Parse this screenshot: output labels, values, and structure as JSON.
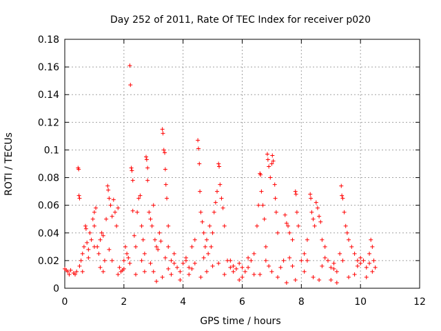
{
  "chart_data": {
    "type": "scatter",
    "title": "Day 252 of 2011, Rate Of TEC Index for receiver p020",
    "xlabel": "GPS time / hours",
    "ylabel": "ROTI / TECUs",
    "xlim": [
      0,
      12
    ],
    "ylim": [
      0,
      0.18
    ],
    "xticks": [
      "0",
      "2",
      "4",
      "6",
      "8",
      "10",
      "12"
    ],
    "yticks": [
      "0",
      "0.02",
      "0.04",
      "0.06",
      "0.08",
      "0.1",
      "0.12",
      "0.14",
      "0.16",
      "0.18"
    ],
    "grid": true,
    "marker": "plus",
    "color": "#ff0000",
    "series": [
      {
        "name": "ROTI",
        "points": [
          [
            0.0,
            0.014
          ],
          [
            0.05,
            0.013
          ],
          [
            0.1,
            0.012
          ],
          [
            0.2,
            0.013
          ],
          [
            0.3,
            0.011
          ],
          [
            0.35,
            0.01
          ],
          [
            0.4,
            0.012
          ],
          [
            0.45,
            0.087
          ],
          [
            0.47,
            0.086
          ],
          [
            0.48,
            0.067
          ],
          [
            0.5,
            0.065
          ],
          [
            0.5,
            0.016
          ],
          [
            0.55,
            0.02
          ],
          [
            0.6,
            0.025
          ],
          [
            0.65,
            0.03
          ],
          [
            0.7,
            0.045
          ],
          [
            0.72,
            0.043
          ],
          [
            0.75,
            0.033
          ],
          [
            0.8,
            0.028
          ],
          [
            0.85,
            0.04
          ],
          [
            0.9,
            0.035
          ],
          [
            0.95,
            0.05
          ],
          [
            1.0,
            0.055
          ],
          [
            1.0,
            0.045
          ],
          [
            1.05,
            0.058
          ],
          [
            1.1,
            0.03
          ],
          [
            1.15,
            0.025
          ],
          [
            1.2,
            0.035
          ],
          [
            1.25,
            0.04
          ],
          [
            1.3,
            0.038
          ],
          [
            1.35,
            0.02
          ],
          [
            1.4,
            0.05
          ],
          [
            1.45,
            0.074
          ],
          [
            1.47,
            0.071
          ],
          [
            1.5,
            0.065
          ],
          [
            1.5,
            0.028
          ],
          [
            1.55,
            0.06
          ],
          [
            1.6,
            0.052
          ],
          [
            1.65,
            0.064
          ],
          [
            1.7,
            0.055
          ],
          [
            1.75,
            0.045
          ],
          [
            1.8,
            0.058
          ],
          [
            1.85,
            0.015
          ],
          [
            1.9,
            0.012
          ],
          [
            1.95,
            0.013
          ],
          [
            2.0,
            0.02
          ],
          [
            2.05,
            0.03
          ],
          [
            2.1,
            0.025
          ],
          [
            2.15,
            0.022
          ],
          [
            2.2,
            0.161
          ],
          [
            2.22,
            0.147
          ],
          [
            2.25,
            0.087
          ],
          [
            2.27,
            0.085
          ],
          [
            2.3,
            0.078
          ],
          [
            2.3,
            0.056
          ],
          [
            2.35,
            0.038
          ],
          [
            2.4,
            0.03
          ],
          [
            2.45,
            0.055
          ],
          [
            2.5,
            0.065
          ],
          [
            2.55,
            0.067
          ],
          [
            2.6,
            0.045
          ],
          [
            2.65,
            0.035
          ],
          [
            2.7,
            0.025
          ],
          [
            2.75,
            0.095
          ],
          [
            2.77,
            0.093
          ],
          [
            2.8,
            0.087
          ],
          [
            2.8,
            0.078
          ],
          [
            2.85,
            0.055
          ],
          [
            2.9,
            0.05
          ],
          [
            2.95,
            0.045
          ],
          [
            3.0,
            0.06
          ],
          [
            3.05,
            0.035
          ],
          [
            3.1,
            0.03
          ],
          [
            3.15,
            0.028
          ],
          [
            3.2,
            0.04
          ],
          [
            3.25,
            0.034
          ],
          [
            3.3,
            0.115
          ],
          [
            3.32,
            0.112
          ],
          [
            3.35,
            0.1
          ],
          [
            3.38,
            0.098
          ],
          [
            3.4,
            0.086
          ],
          [
            3.42,
            0.075
          ],
          [
            3.45,
            0.065
          ],
          [
            3.5,
            0.045
          ],
          [
            3.5,
            0.03
          ],
          [
            3.6,
            0.02
          ],
          [
            3.7,
            0.025
          ],
          [
            3.8,
            0.015
          ],
          [
            3.9,
            0.012
          ],
          [
            4.0,
            0.018
          ],
          [
            4.1,
            0.02
          ],
          [
            4.2,
            0.015
          ],
          [
            4.3,
            0.03
          ],
          [
            4.4,
            0.035
          ],
          [
            4.5,
            0.107
          ],
          [
            4.52,
            0.101
          ],
          [
            4.55,
            0.09
          ],
          [
            4.57,
            0.07
          ],
          [
            4.6,
            0.055
          ],
          [
            4.65,
            0.048
          ],
          [
            4.7,
            0.04
          ],
          [
            4.75,
            0.03
          ],
          [
            4.8,
            0.035
          ],
          [
            4.85,
            0.025
          ],
          [
            4.9,
            0.045
          ],
          [
            4.95,
            0.03
          ],
          [
            5.0,
            0.04
          ],
          [
            5.05,
            0.055
          ],
          [
            5.1,
            0.062
          ],
          [
            5.15,
            0.07
          ],
          [
            5.2,
            0.09
          ],
          [
            5.22,
            0.088
          ],
          [
            5.25,
            0.075
          ],
          [
            5.3,
            0.065
          ],
          [
            5.35,
            0.058
          ],
          [
            5.4,
            0.045
          ],
          [
            5.5,
            0.02
          ],
          [
            5.6,
            0.015
          ],
          [
            5.7,
            0.012
          ],
          [
            5.8,
            0.014
          ],
          [
            5.9,
            0.018
          ],
          [
            6.0,
            0.015
          ],
          [
            6.1,
            0.012
          ],
          [
            6.2,
            0.015
          ],
          [
            6.3,
            0.02
          ],
          [
            6.4,
            0.025
          ],
          [
            6.5,
            0.045
          ],
          [
            6.55,
            0.06
          ],
          [
            6.6,
            0.083
          ],
          [
            6.62,
            0.082
          ],
          [
            6.65,
            0.07
          ],
          [
            6.7,
            0.06
          ],
          [
            6.75,
            0.05
          ],
          [
            6.8,
            0.03
          ],
          [
            6.85,
            0.097
          ],
          [
            6.87,
            0.093
          ],
          [
            6.9,
            0.088
          ],
          [
            6.95,
            0.08
          ],
          [
            7.0,
            0.09
          ],
          [
            7.02,
            0.096
          ],
          [
            7.05,
            0.092
          ],
          [
            7.1,
            0.075
          ],
          [
            7.12,
            0.065
          ],
          [
            7.15,
            0.055
          ],
          [
            7.2,
            0.04
          ],
          [
            7.3,
            0.015
          ],
          [
            7.4,
            0.02
          ],
          [
            7.45,
            0.053
          ],
          [
            7.5,
            0.047
          ],
          [
            7.55,
            0.045
          ],
          [
            7.6,
            0.04
          ],
          [
            7.7,
            0.035
          ],
          [
            7.8,
            0.07
          ],
          [
            7.82,
            0.068
          ],
          [
            7.85,
            0.055
          ],
          [
            7.9,
            0.045
          ],
          [
            8.0,
            0.02
          ],
          [
            8.1,
            0.025
          ],
          [
            8.2,
            0.035
          ],
          [
            8.3,
            0.068
          ],
          [
            8.32,
            0.065
          ],
          [
            8.35,
            0.055
          ],
          [
            8.4,
            0.05
          ],
          [
            8.45,
            0.045
          ],
          [
            8.5,
            0.062
          ],
          [
            8.55,
            0.058
          ],
          [
            8.6,
            0.052
          ],
          [
            8.65,
            0.048
          ],
          [
            8.7,
            0.035
          ],
          [
            8.8,
            0.03
          ],
          [
            8.9,
            0.02
          ],
          [
            9.0,
            0.015
          ],
          [
            9.1,
            0.018
          ],
          [
            9.2,
            0.012
          ],
          [
            9.3,
            0.025
          ],
          [
            9.35,
            0.074
          ],
          [
            9.37,
            0.067
          ],
          [
            9.4,
            0.065
          ],
          [
            9.45,
            0.055
          ],
          [
            9.5,
            0.045
          ],
          [
            9.55,
            0.04
          ],
          [
            9.6,
            0.035
          ],
          [
            9.7,
            0.03
          ],
          [
            9.8,
            0.025
          ],
          [
            9.9,
            0.02
          ],
          [
            10.0,
            0.018
          ],
          [
            10.1,
            0.02
          ],
          [
            10.2,
            0.015
          ],
          [
            10.3,
            0.025
          ],
          [
            10.35,
            0.035
          ],
          [
            10.4,
            0.03
          ],
          [
            10.45,
            0.02
          ],
          [
            10.5,
            0.015
          ],
          [
            0.15,
            0.01
          ],
          [
            0.6,
            0.012
          ],
          [
            1.2,
            0.015
          ],
          [
            1.8,
            0.01
          ],
          [
            2.4,
            0.01
          ],
          [
            3.0,
            0.012
          ],
          [
            3.6,
            0.01
          ],
          [
            4.2,
            0.01
          ],
          [
            4.8,
            0.012
          ],
          [
            5.4,
            0.01
          ],
          [
            6.0,
            0.008
          ],
          [
            6.6,
            0.01
          ],
          [
            7.2,
            0.008
          ],
          [
            7.8,
            0.006
          ],
          [
            8.4,
            0.008
          ],
          [
            9.0,
            0.006
          ],
          [
            9.6,
            0.008
          ],
          [
            10.2,
            0.008
          ],
          [
            0.8,
            0.022
          ],
          [
            1.0,
            0.03
          ],
          [
            1.6,
            0.02
          ],
          [
            2.2,
            0.018
          ],
          [
            2.6,
            0.02
          ],
          [
            2.9,
            0.018
          ],
          [
            3.4,
            0.022
          ],
          [
            3.7,
            0.018
          ],
          [
            4.1,
            0.022
          ],
          [
            4.4,
            0.018
          ],
          [
            4.7,
            0.022
          ],
          [
            5.2,
            0.018
          ],
          [
            5.6,
            0.02
          ],
          [
            6.2,
            0.022
          ],
          [
            6.8,
            0.02
          ],
          [
            7.6,
            0.022
          ],
          [
            8.2,
            0.02
          ],
          [
            8.8,
            0.022
          ],
          [
            9.4,
            0.02
          ],
          [
            10.0,
            0.022
          ],
          [
            3.1,
            0.005
          ],
          [
            3.3,
            0.008
          ],
          [
            3.9,
            0.006
          ],
          [
            4.6,
            0.008
          ],
          [
            5.9,
            0.006
          ],
          [
            6.4,
            0.01
          ],
          [
            7.0,
            0.012
          ],
          [
            7.5,
            0.004
          ],
          [
            8.6,
            0.006
          ],
          [
            9.2,
            0.004
          ],
          [
            9.8,
            0.01
          ],
          [
            10.4,
            0.012
          ],
          [
            1.3,
            0.012
          ],
          [
            2.0,
            0.014
          ],
          [
            2.7,
            0.012
          ],
          [
            3.5,
            0.014
          ],
          [
            4.3,
            0.014
          ],
          [
            5.0,
            0.016
          ],
          [
            5.7,
            0.016
          ],
          [
            6.9,
            0.016
          ],
          [
            7.7,
            0.016
          ],
          [
            8.1,
            0.012
          ],
          [
            8.7,
            0.016
          ],
          [
            9.1,
            0.014
          ],
          [
            9.9,
            0.016
          ],
          [
            10.3,
            0.018
          ]
        ]
      }
    ]
  }
}
